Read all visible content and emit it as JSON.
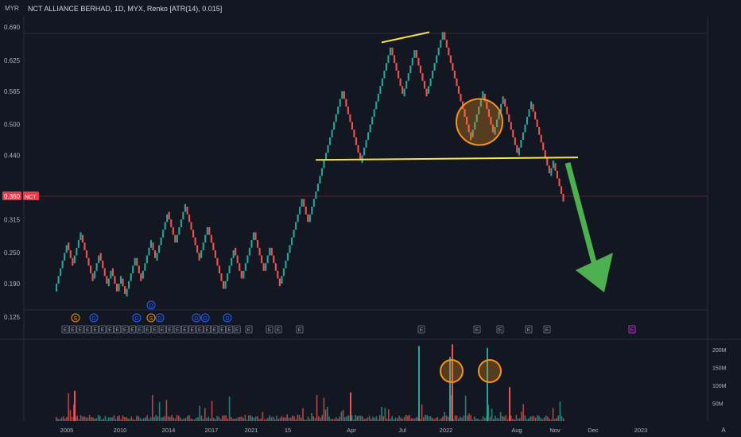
{
  "header": {
    "currency": "MYR",
    "title": "NCT ALLIANCE BERHAD, 1D, MYX, Renko [ATR(14), 0.015]"
  },
  "colors": {
    "background": "#131722",
    "up": "#26a69a",
    "down": "#ef5350",
    "trendline": "#f5e642",
    "highlight": "#f7931a",
    "arrow": "#4caf50",
    "price_badge": "#f23645"
  },
  "price_axis": {
    "ticks": [
      "0.690",
      "0.625",
      "0.565",
      "0.500",
      "0.440",
      "0.365",
      "0.315",
      "0.250",
      "0.190",
      "0.125"
    ],
    "current_price": "0.360",
    "current_symbol": "NCT"
  },
  "time_axis": {
    "ticks": [
      "2005",
      "2010",
      "2014",
      "2017",
      "2021",
      "15",
      "Apr",
      "Jul",
      "2022",
      "Aug",
      "Nov",
      "Dec",
      "2023"
    ],
    "axis_mode": "A"
  },
  "volume_axis": {
    "ticks": [
      "200M",
      "150M",
      "100M",
      "50M"
    ]
  },
  "events": {
    "top_row": [
      "D"
    ],
    "middle_row": [
      "S",
      "D",
      "D",
      "S",
      "D",
      "D",
      "D",
      "D"
    ],
    "bottom_row": [
      "E",
      "E",
      "E",
      "E",
      "E",
      "E",
      "E",
      "E",
      "E",
      "E",
      "E",
      "E",
      "E",
      "E",
      "E",
      "E",
      "E",
      "E",
      "E",
      "E",
      "E",
      "E",
      "E",
      "E",
      "E",
      "E",
      "E",
      "E",
      "E",
      "E",
      "E",
      "E",
      "E"
    ]
  },
  "chart_data": {
    "type": "renko",
    "brick_size": 0.015,
    "price_range": [
      0.12,
      0.7
    ],
    "brick_path": [
      0.175,
      0.27,
      0.23,
      0.285,
      0.2,
      0.25,
      0.185,
      0.22,
      0.175,
      0.2,
      0.165,
      0.24,
      0.2,
      0.27,
      0.235,
      0.33,
      0.27,
      0.34,
      0.24,
      0.3,
      0.18,
      0.26,
      0.2,
      0.29,
      0.215,
      0.26,
      0.19,
      0.355,
      0.31,
      0.565,
      0.425,
      0.65,
      0.555,
      0.645,
      0.56,
      0.68,
      0.475,
      0.56,
      0.48,
      0.55,
      0.44,
      0.54,
      0.4,
      0.425,
      0.35
    ],
    "annotations": {
      "neckline": [
        0.431,
        0.436
      ],
      "top_trendline": [
        0.66,
        0.68
      ],
      "circle_price": 0.505
    },
    "volume": {
      "range_millions": [
        0,
        210
      ],
      "notable_spikes_millions": [
        180,
        215,
        205
      ]
    }
  }
}
